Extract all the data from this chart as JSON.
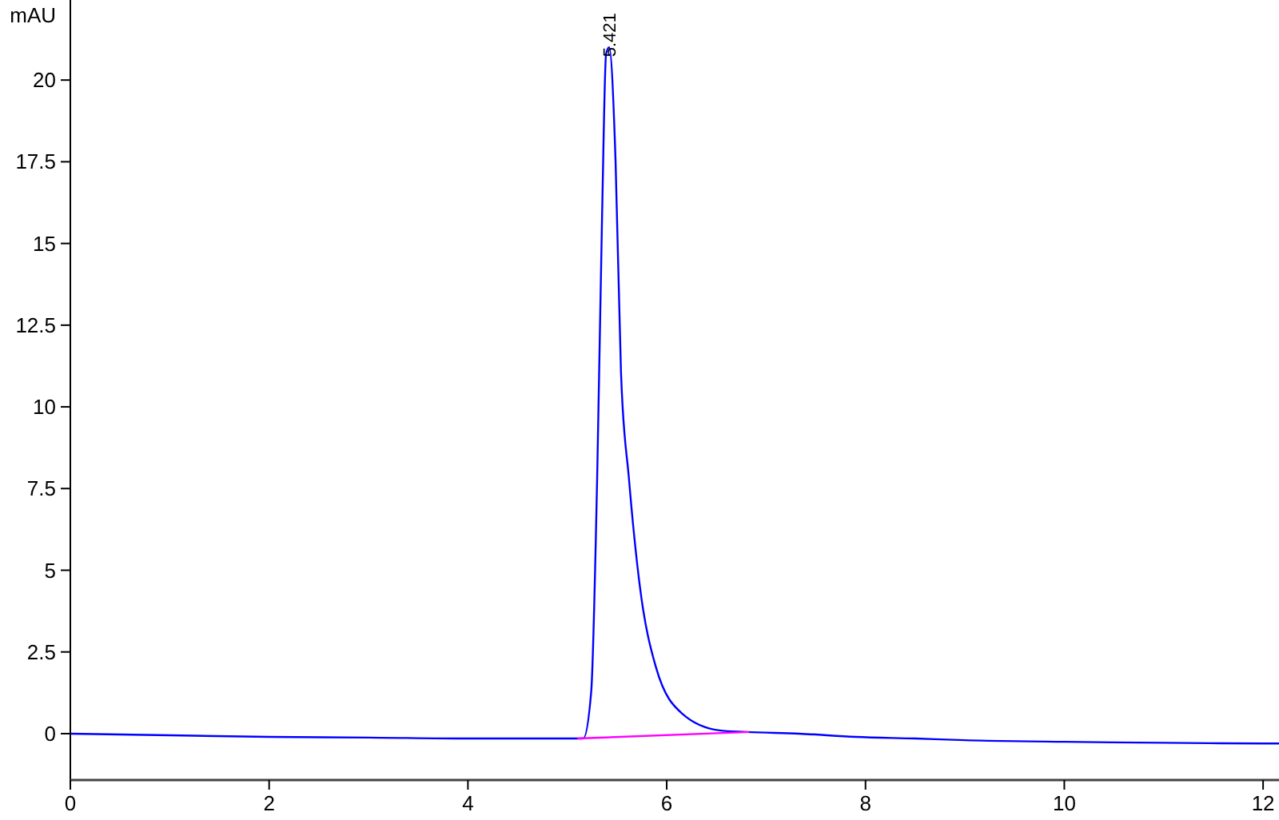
{
  "chart_data": {
    "type": "line",
    "ylabel": "mAU",
    "xlim": [
      0,
      12.16
    ],
    "ylim": [
      -1.42,
      22.45
    ],
    "xticks": [
      0,
      2,
      4,
      6,
      8,
      10,
      12
    ],
    "yticks": [
      0,
      2.5,
      5,
      7.5,
      10,
      12.5,
      15,
      17.5,
      20
    ],
    "grid": false,
    "marker": "none",
    "line_style": "solid",
    "annotations": [
      {
        "text": "5.421",
        "x": 5.421,
        "y": 21
      }
    ],
    "series": [
      {
        "color": "#0000ff",
        "x": [
          0,
          1,
          2,
          3,
          4,
          4.5,
          5,
          5.1,
          5.16,
          5.24,
          5.3,
          5.35,
          5.39,
          5.421,
          5.485,
          5.54,
          5.62,
          5.73,
          5.89,
          6.16,
          6.53,
          6.8,
          7.33,
          7.9,
          8.5,
          9,
          10,
          11,
          12,
          12.16
        ],
        "values": [
          0,
          -0.05,
          -0.1,
          -0.12,
          -0.15,
          -0.15,
          -0.15,
          -0.15,
          -0.15,
          1.27,
          7.8,
          15.9,
          20.8,
          21,
          17.55,
          11.05,
          7.8,
          4.5,
          2.05,
          0.6,
          0.1,
          0.05,
          0,
          -0.1,
          -0.15,
          -0.2,
          -0.25,
          -0.28,
          -0.3,
          -0.3
        ]
      },
      {
        "color": "#ff00ff",
        "x": [
          5.1,
          6.83
        ],
        "values": [
          -0.15,
          0.05
        ]
      }
    ]
  }
}
